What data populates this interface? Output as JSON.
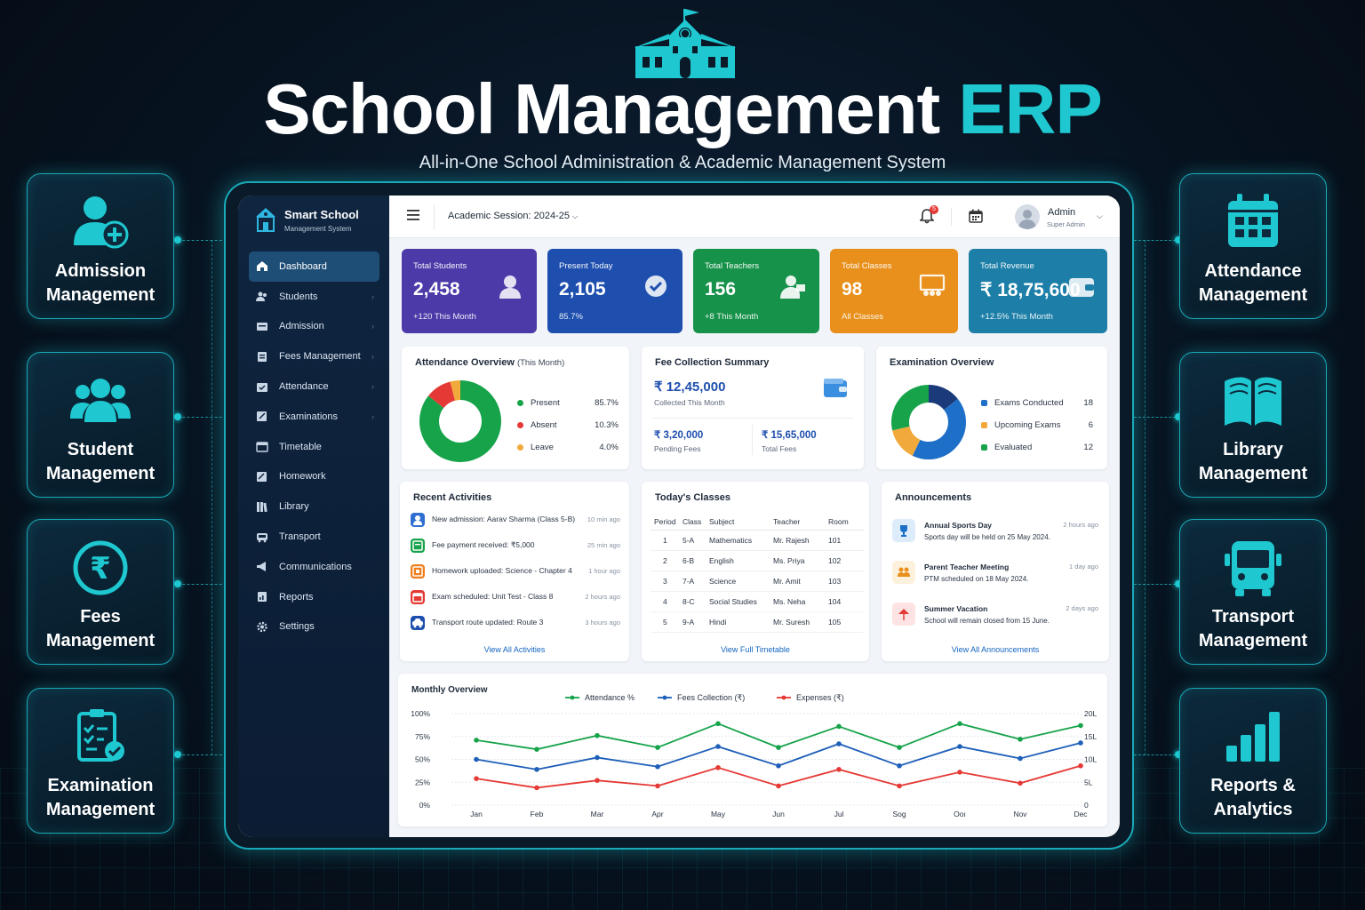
{
  "hero": {
    "title_main": "School Management",
    "title_accent": "ERP",
    "subtitle": "All-in-One School Administration & Academic Management System"
  },
  "features_left": [
    {
      "label": "Admission Management",
      "icon": "admission-icon"
    },
    {
      "label": "Student Management",
      "icon": "students-group-icon"
    },
    {
      "label": "Fees Management",
      "icon": "rupee-icon"
    },
    {
      "label": "Examination Management",
      "icon": "clipboard-check-icon"
    }
  ],
  "features_right": [
    {
      "label": "Attendance Management",
      "icon": "calendar-icon"
    },
    {
      "label": "Library Management",
      "icon": "book-icon"
    },
    {
      "label": "Transport Management",
      "icon": "bus-icon"
    },
    {
      "label": "Reports & Analytics",
      "icon": "bar-chart-icon"
    }
  ],
  "app": {
    "brand_title": "Smart School",
    "brand_subtitle": "Management System",
    "session": "Academic Session: 2024-25",
    "notif_count": "5",
    "admin_name": "Admin",
    "admin_role": "Super Admin"
  },
  "nav": [
    {
      "label": "Dashboard",
      "icon": "home-icon",
      "active": true,
      "chevron": false
    },
    {
      "label": "Students",
      "icon": "users-icon",
      "chevron": true
    },
    {
      "label": "Admission",
      "icon": "admission-icon",
      "chevron": true
    },
    {
      "label": "Fees Management",
      "icon": "fees-icon",
      "chevron": true
    },
    {
      "label": "Attendance",
      "icon": "attendance-icon",
      "chevron": true
    },
    {
      "label": "Examinations",
      "icon": "exam-icon",
      "chevron": true
    },
    {
      "label": "Timetable",
      "icon": "timetable-icon",
      "chevron": false
    },
    {
      "label": "Homework",
      "icon": "homework-icon",
      "chevron": false
    },
    {
      "label": "Library",
      "icon": "library-icon",
      "chevron": false
    },
    {
      "label": "Transport",
      "icon": "transport-icon",
      "chevron": false
    },
    {
      "label": "Communications",
      "icon": "megaphone-icon",
      "chevron": false
    },
    {
      "label": "Reports",
      "icon": "reports-icon",
      "chevron": false
    },
    {
      "label": "Settings",
      "icon": "gear-icon",
      "chevron": false
    }
  ],
  "stats": [
    {
      "label": "Total Students",
      "value": "2,458",
      "sub": "+120 This Month",
      "color": "#4b3aa8",
      "icon": "student-icon"
    },
    {
      "label": "Present Today",
      "value": "2,105",
      "sub": "85.7%",
      "color": "#1e4fae",
      "icon": "check-icon"
    },
    {
      "label": "Total Teachers",
      "value": "156",
      "sub": "+8 This Month",
      "color": "#17924a",
      "icon": "teacher-icon"
    },
    {
      "label": "Total Classes",
      "value": "98",
      "sub": "All Classes",
      "color": "#e8901b",
      "icon": "classroom-icon"
    },
    {
      "label": "Total Revenue",
      "value": "₹ 18,75,600",
      "sub": "+12.5% This Month",
      "color": "#1d7fa8",
      "icon": "wallet-icon"
    }
  ],
  "attendance": {
    "title": "Attendance Overview",
    "title_note": "(This Month)",
    "items": [
      {
        "label": "Present",
        "value": "85.7%",
        "pct": 85.7,
        "color": "#16a34a"
      },
      {
        "label": "Absent",
        "value": "10.3%",
        "pct": 10.3,
        "color": "#e53935"
      },
      {
        "label": "Leave",
        "value": "4.0%",
        "pct": 4.0,
        "color": "#f2a93b"
      }
    ]
  },
  "fees": {
    "title": "Fee Collection Summary",
    "collected": "₹ 12,45,000",
    "collected_label": "Collected This Month",
    "pending": "₹ 3,20,000",
    "pending_label": "Pending Fees",
    "total": "₹ 15,65,000",
    "total_label": "Total Fees"
  },
  "exams": {
    "title": "Examination Overview",
    "items": [
      {
        "label": "Exams Conducted",
        "value": "18",
        "count": 18,
        "color": "#1e6fc8"
      },
      {
        "label": "Upcoming Exams",
        "value": "6",
        "count": 6,
        "color": "#f2a93b"
      },
      {
        "label": "Evaluated",
        "value": "12",
        "count": 12,
        "color": "#16a34a"
      }
    ],
    "donut_extra_color": "#1b3a7a"
  },
  "activities": {
    "title": "Recent Activities",
    "link": "View All Activities",
    "items": [
      {
        "text": "New admission: Aarav Sharma (Class 5-B)",
        "time": "10 min ago",
        "icon": "user-icon",
        "color": "#2f6fd0"
      },
      {
        "text": "Fee payment received: ₹5,000",
        "time": "25 min ago",
        "icon": "receipt-icon",
        "color": "#16a34a"
      },
      {
        "text": "Homework uploaded: Science - Chapter 4",
        "time": "1 hour ago",
        "icon": "homework-icon",
        "color": "#ef7d1a"
      },
      {
        "text": "Exam scheduled: Unit Test - Class 8",
        "time": "2 hours ago",
        "icon": "calendar-icon",
        "color": "#e53935"
      },
      {
        "text": "Transport route updated: Route 3",
        "time": "3 hours ago",
        "icon": "car-icon",
        "color": "#1e4fae"
      }
    ]
  },
  "classes": {
    "title": "Today's Classes",
    "link": "View Full Timetable",
    "headers": [
      "Period",
      "Class",
      "Subject",
      "Teacher",
      "Room"
    ],
    "rows": [
      [
        "1",
        "5-A",
        "Mathematics",
        "Mr. Rajesh",
        "101"
      ],
      [
        "2",
        "6-B",
        "English",
        "Ms. Priya",
        "102"
      ],
      [
        "3",
        "7-A",
        "Science",
        "Mr. Amit",
        "103"
      ],
      [
        "4",
        "8-C",
        "Social Studies",
        "Ms. Neha",
        "104"
      ],
      [
        "5",
        "9-A",
        "Hindi",
        "Mr. Suresh",
        "105"
      ]
    ]
  },
  "announcements": {
    "title": "Announcements",
    "link": "View All Announcements",
    "items": [
      {
        "name": "Annual Sports Day",
        "desc": "Sports day will be held on 25 May 2024.",
        "time": "2 hours ago",
        "icon": "trophy-icon",
        "color": "#dcecfb",
        "fg": "#1e6fc8"
      },
      {
        "name": "Parent Teacher Meeting",
        "desc": "PTM scheduled on 18 May 2024.",
        "time": "1 day ago",
        "icon": "meeting-icon",
        "color": "#fdf1dc",
        "fg": "#e8901b"
      },
      {
        "name": "Summer Vacation",
        "desc": "School will remain closed from 15 June.",
        "time": "2 days ago",
        "icon": "vacation-icon",
        "color": "#fde3e3",
        "fg": "#e53935"
      }
    ]
  },
  "chart_data": {
    "type": "line",
    "title": "Monthly Overview",
    "categories": [
      "Jan",
      "Feb",
      "Mar",
      "Apr",
      "May",
      "Jun",
      "Jul",
      "Sog",
      "Ooı",
      "Nov",
      "Dec"
    ],
    "y_left_ticks": [
      "100%",
      "75%",
      "50%",
      "25%",
      "0%"
    ],
    "y_right_ticks": [
      "20L",
      "15L",
      "10L",
      "5L",
      "0"
    ],
    "ylim": [
      0,
      100
    ],
    "grid": true,
    "legend_position": "top",
    "series": [
      {
        "name": "Attendance %",
        "color": "#16a34a",
        "values": [
          71,
          61,
          76,
          63,
          89,
          63,
          86,
          63,
          89,
          72,
          87
        ]
      },
      {
        "name": "Fees Collection (₹)",
        "color": "#1e5fb8",
        "values": [
          50,
          39,
          52,
          42,
          64,
          43,
          67,
          43,
          64,
          51,
          68
        ]
      },
      {
        "name": "Expenses (₹)",
        "color": "#e53935",
        "values": [
          29,
          19,
          27,
          21,
          41,
          21,
          39,
          21,
          36,
          24,
          43
        ]
      }
    ]
  }
}
